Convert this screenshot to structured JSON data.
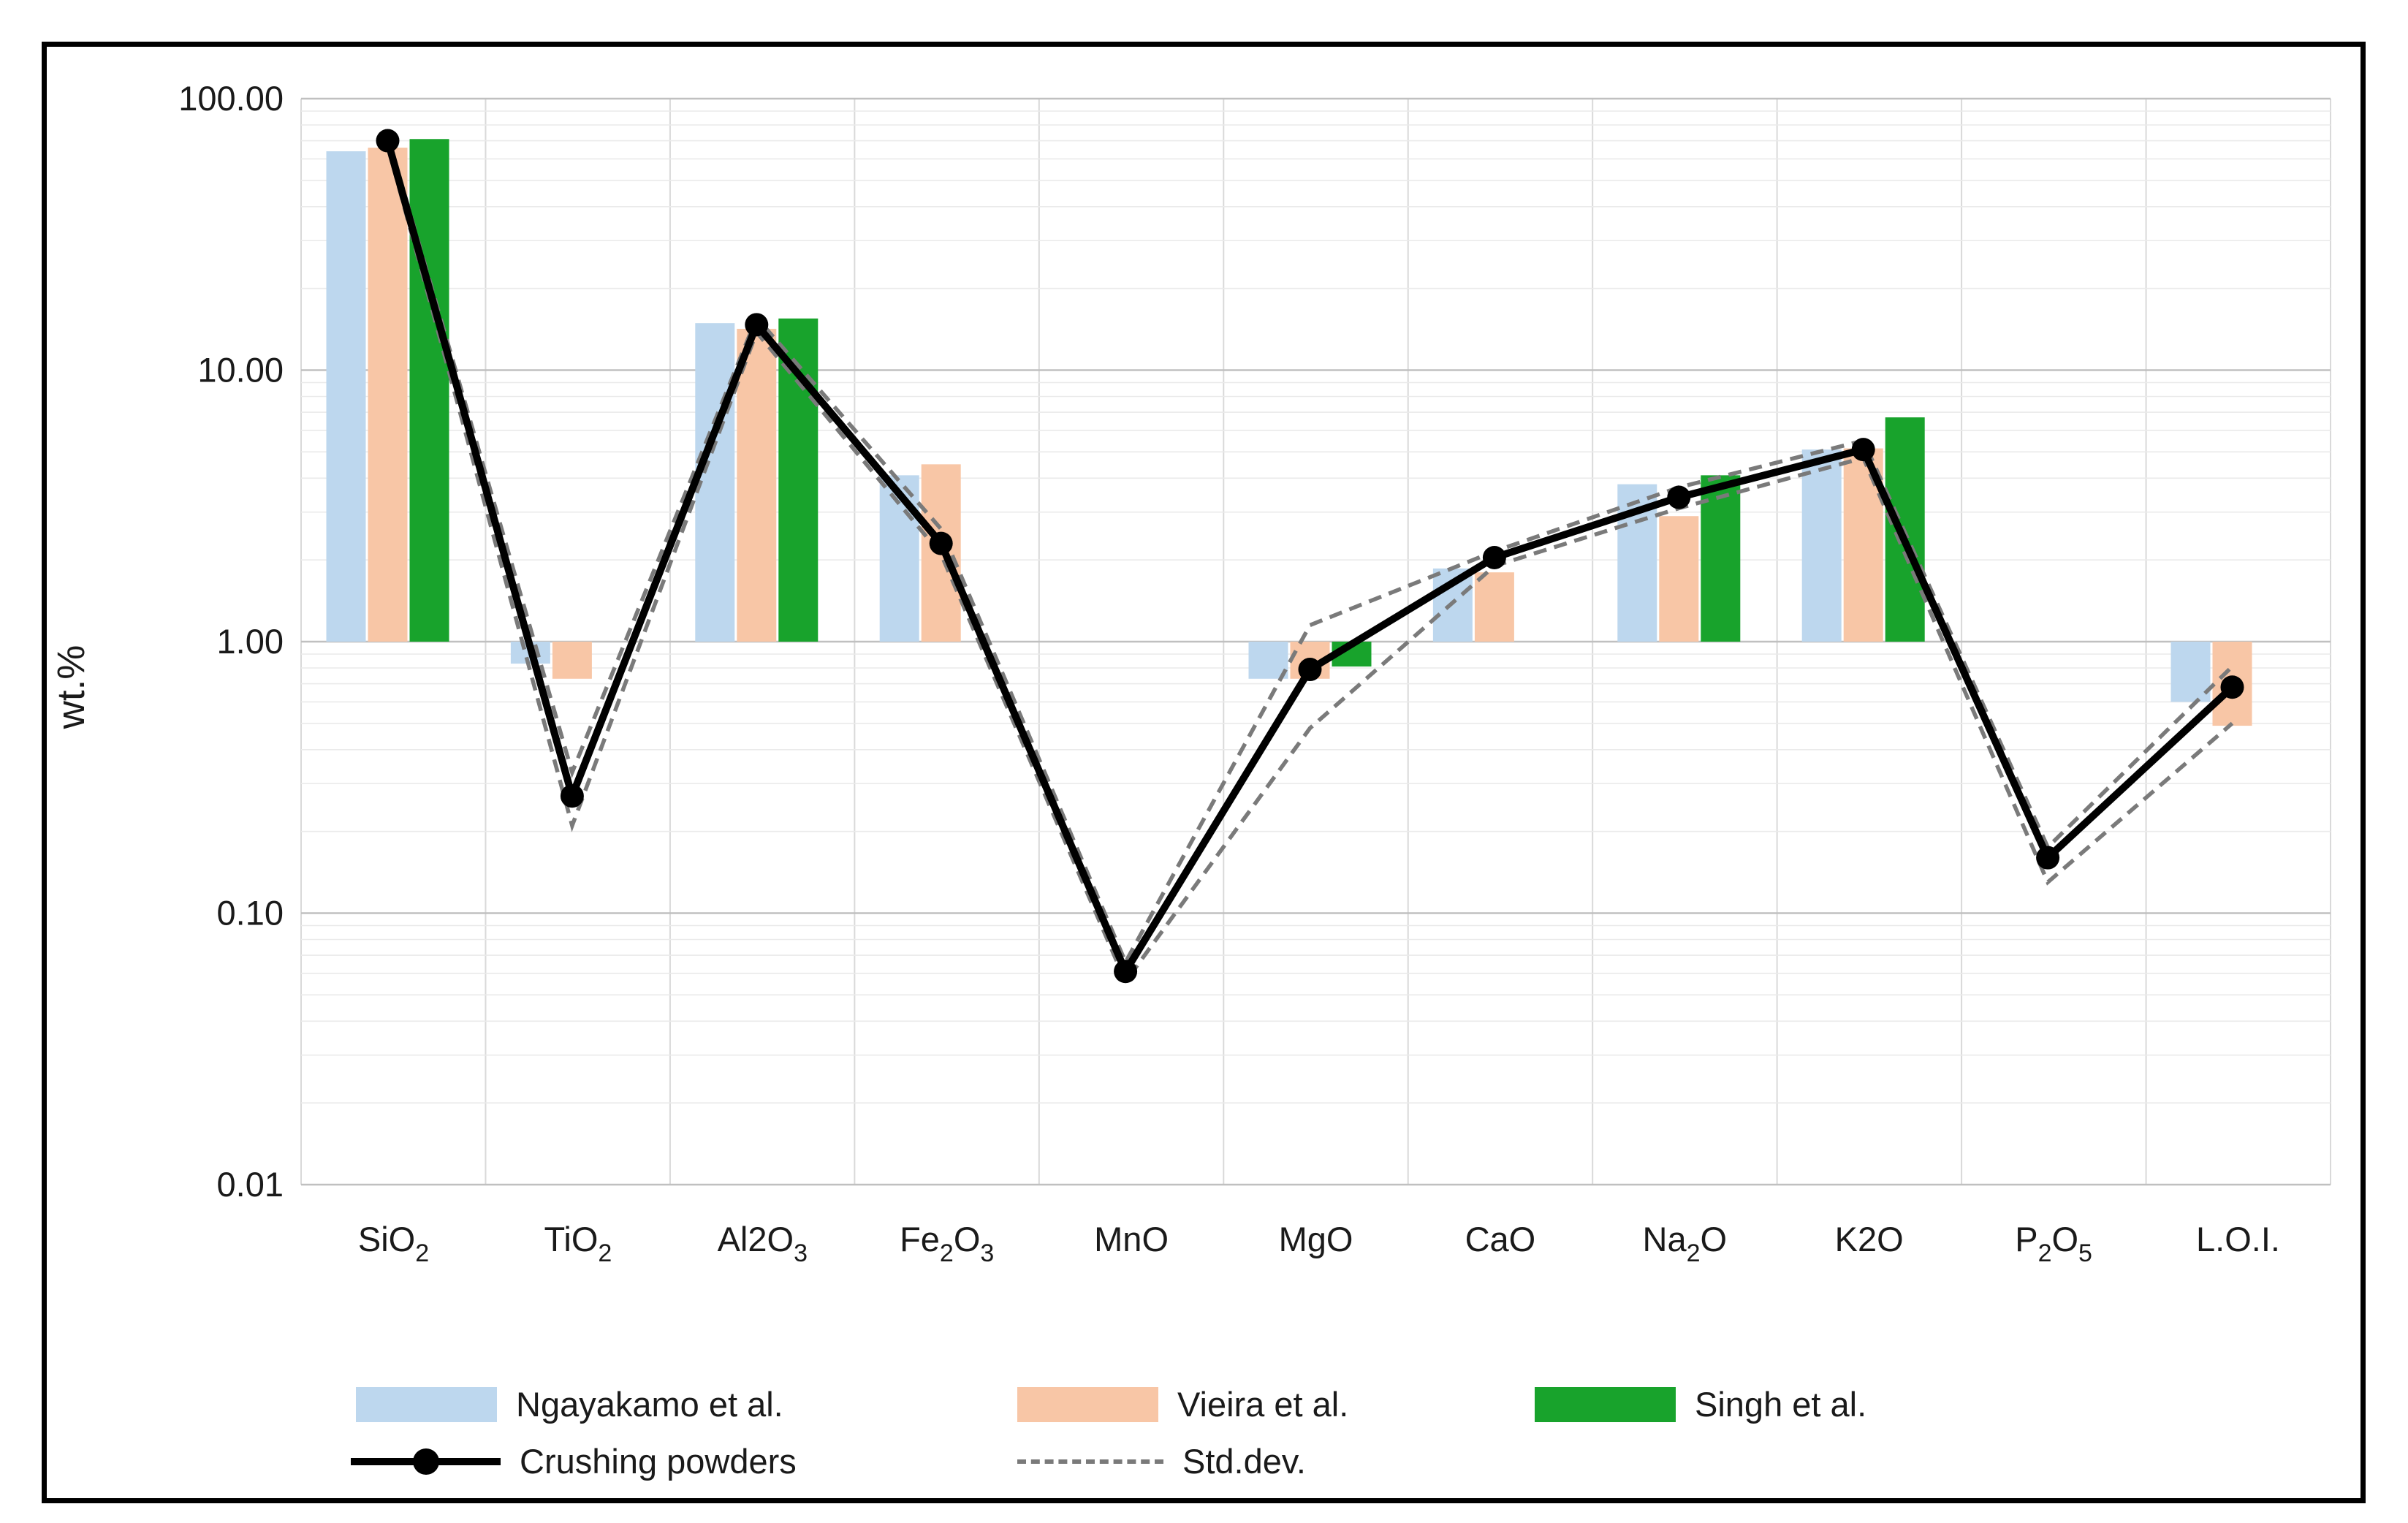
{
  "chart_data": {
    "type": "combo-bar-line",
    "title": "",
    "xlabel": "",
    "ylabel": "wt.%",
    "y_scale": "log10",
    "ylim": [
      0.01,
      100
    ],
    "bar_baseline": 1.0,
    "grid": "major and minor log gridlines, vertical category separators",
    "legend_position": "bottom",
    "y_axis": {
      "title": "wt.%",
      "ticks": [
        {
          "label": "100.00",
          "value": 100
        },
        {
          "label": "10.00",
          "value": 10
        },
        {
          "label": "1.00",
          "value": 1
        },
        {
          "label": "0.10",
          "value": 0.1
        },
        {
          "label": "0.01",
          "value": 0.01
        }
      ]
    },
    "categories": [
      "SiO2",
      "TiO2",
      "Al2O3",
      "Fe2O3",
      "MnO",
      "MgO",
      "CaO",
      "Na2O",
      "K2O",
      "P2O5",
      "L.O.I."
    ],
    "categories_rich": [
      [
        {
          "t": "SiO"
        },
        {
          "t": "2",
          "sub": true
        }
      ],
      [
        {
          "t": "TiO"
        },
        {
          "t": "2",
          "sub": true
        }
      ],
      [
        {
          "t": "Al2O"
        },
        {
          "t": "3",
          "sub": true
        }
      ],
      [
        {
          "t": "Fe"
        },
        {
          "t": "2",
          "sub": true
        },
        {
          "t": "O"
        },
        {
          "t": "3",
          "sub": true
        }
      ],
      [
        {
          "t": "MnO"
        }
      ],
      [
        {
          "t": "MgO"
        }
      ],
      [
        {
          "t": "CaO"
        }
      ],
      [
        {
          "t": "Na"
        },
        {
          "t": "2",
          "sub": true
        },
        {
          "t": "O"
        }
      ],
      [
        {
          "t": "K2O"
        }
      ],
      [
        {
          "t": "P"
        },
        {
          "t": "2",
          "sub": true
        },
        {
          "t": "O"
        },
        {
          "t": "5",
          "sub": true
        }
      ],
      [
        {
          "t": "L.O.I."
        }
      ]
    ],
    "series": [
      {
        "name": "Ngayakamo et al.",
        "type": "bar",
        "color": "#BDD7EE",
        "values": [
          64,
          0.83,
          14.9,
          4.1,
          null,
          0.73,
          1.86,
          3.8,
          5.1,
          null,
          0.6
        ]
      },
      {
        "name": "Vieira et al.",
        "type": "bar",
        "color": "#F8C6A6",
        "values": [
          66,
          0.73,
          14.2,
          4.5,
          null,
          0.73,
          1.8,
          2.9,
          5.15,
          null,
          0.49
        ]
      },
      {
        "name": "Singh et al.",
        "type": "bar",
        "color": "#18A32C",
        "values": [
          71,
          null,
          15.5,
          null,
          null,
          0.81,
          null,
          4.1,
          6.7,
          null,
          null
        ]
      },
      {
        "name": "Crushing powders",
        "type": "line",
        "color": "#000000",
        "marker": "circle",
        "values": [
          70,
          0.27,
          14.7,
          2.3,
          0.061,
          0.79,
          2.04,
          3.4,
          5.1,
          0.16,
          0.68
        ]
      },
      {
        "name": "Std.dev.",
        "type": "dashed-lines",
        "color": "#7A7A7A",
        "upper": [
          73,
          0.33,
          15.6,
          2.6,
          0.066,
          1.15,
          2.15,
          3.7,
          5.5,
          0.175,
          0.81
        ],
        "lower": [
          67,
          0.21,
          13.8,
          2.1,
          0.056,
          0.48,
          1.9,
          3.1,
          4.75,
          0.13,
          0.5
        ]
      }
    ]
  },
  "legend": {
    "items": [
      {
        "label": "Ngayakamo et al.",
        "swatch": "bar-blue"
      },
      {
        "label": "Vieira et al.",
        "swatch": "bar-peach"
      },
      {
        "label": "Singh et al.",
        "swatch": "bar-green"
      },
      {
        "label": "Crushing powders",
        "swatch": "line-with-marker"
      },
      {
        "label": "Std.dev.",
        "swatch": "dashed-line"
      }
    ]
  }
}
